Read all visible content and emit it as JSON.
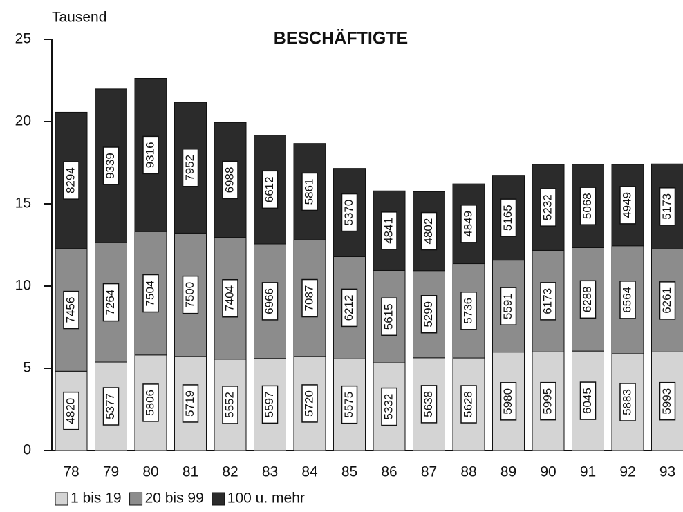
{
  "chart_data": {
    "type": "stacked-bar",
    "title": "BESCHÄFTIGTE",
    "y_label": "Tausend",
    "categories": [
      "78",
      "79",
      "80",
      "81",
      "82",
      "83",
      "84",
      "85",
      "86",
      "87",
      "88",
      "89",
      "90",
      "91",
      "92",
      "93"
    ],
    "ylim": [
      0,
      25
    ],
    "yticks": [
      0,
      5,
      10,
      15,
      20,
      25
    ],
    "series": [
      {
        "name": "1 bis 19",
        "color": "#d4d4d4",
        "values": [
          4.82,
          5.377,
          5.806,
          5.719,
          5.552,
          5.597,
          5.72,
          5.575,
          5.332,
          5.638,
          5.628,
          5.98,
          5.995,
          6.045,
          5.883,
          5.993
        ],
        "value_labels": [
          "4820",
          "5377",
          "5806",
          "5719",
          "5552",
          "5597",
          "5720",
          "5575",
          "5332",
          "5638",
          "5628",
          "5980",
          "5995",
          "6045",
          "5883",
          "5993"
        ]
      },
      {
        "name": "20 bis 99",
        "color": "#8c8c8c",
        "values": [
          7.456,
          7.264,
          7.504,
          7.5,
          7.404,
          6.966,
          7.087,
          6.212,
          5.615,
          5.299,
          5.736,
          5.591,
          6.173,
          6.288,
          6.564,
          6.261
        ],
        "value_labels": [
          "7456",
          "7264",
          "7504",
          "7500",
          "7404",
          "6966",
          "7087",
          "6212",
          "5615",
          "5299",
          "5736",
          "5591",
          "6173",
          "6288",
          "6564",
          "6261"
        ]
      },
      {
        "name": "100 u. mehr",
        "color": "#2b2b2b",
        "values": [
          8.294,
          9.339,
          9.316,
          7.952,
          6.988,
          6.612,
          5.861,
          5.37,
          4.841,
          4.802,
          4.849,
          5.165,
          5.232,
          5.068,
          4.949,
          5.173
        ],
        "value_labels": [
          "8294",
          "9339",
          "9316",
          "7952",
          "6988",
          "6612",
          "5861",
          "5370",
          "4841",
          "4802",
          "4849",
          "5165",
          "5232",
          "5068",
          "4949",
          "5173"
        ]
      }
    ],
    "legend": "bottom-left"
  }
}
